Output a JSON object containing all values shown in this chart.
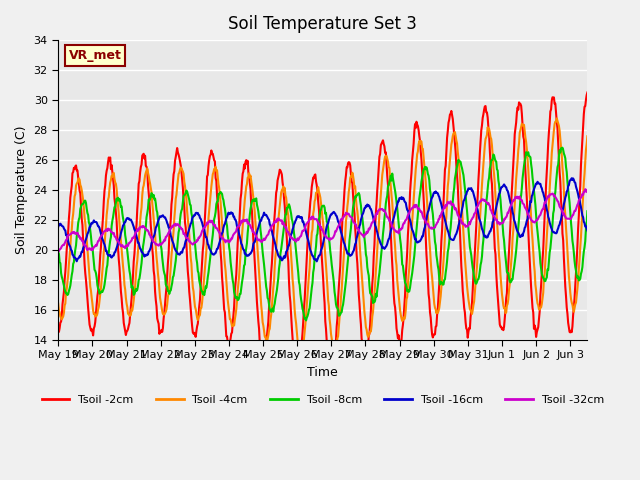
{
  "title": "Soil Temperature Set 3",
  "xlabel": "Time",
  "ylabel": "Soil Temperature (C)",
  "ylim": [
    14,
    34
  ],
  "yticks": [
    14,
    16,
    18,
    20,
    22,
    24,
    26,
    28,
    30,
    32,
    34
  ],
  "colors": {
    "Tsoil -2cm": "#ff0000",
    "Tsoil -4cm": "#ff8800",
    "Tsoil -8cm": "#00cc00",
    "Tsoil -16cm": "#0000cc",
    "Tsoil -32cm": "#cc00cc"
  },
  "annotation_text": "VR_met",
  "annotation_box_color": "#ffffcc",
  "annotation_text_color": "#8b0000",
  "plot_background": "#e8e8e8",
  "grid_color": "#ffffff",
  "line_width": 1.5,
  "n_points": 744,
  "n_days": 15,
  "xlim_max": 15.5
}
